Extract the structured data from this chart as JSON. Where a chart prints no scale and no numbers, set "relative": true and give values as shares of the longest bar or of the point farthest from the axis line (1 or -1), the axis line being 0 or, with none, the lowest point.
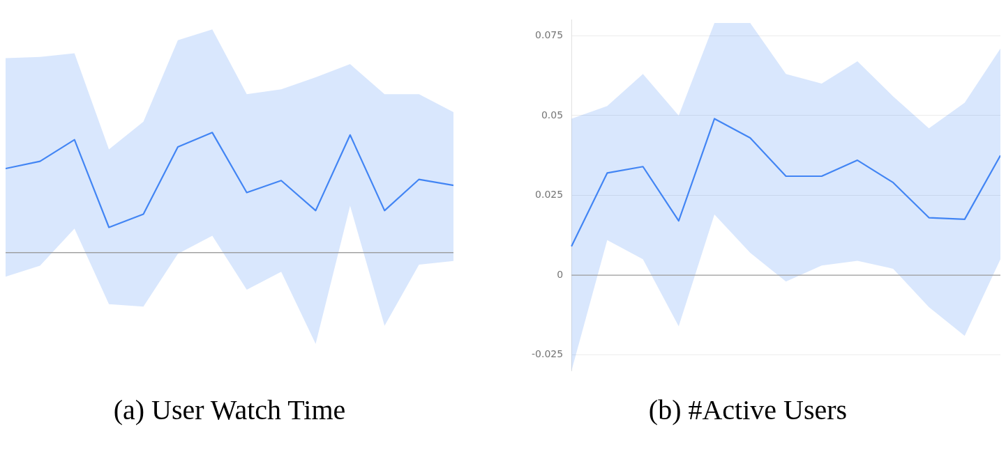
{
  "chart_data": [
    {
      "type": "line",
      "xlabel": "(a)  User Watch Time",
      "relative": true,
      "legend": false,
      "tick_labels": false,
      "marker": "none",
      "line_style": "solid",
      "categories": [
        null,
        null,
        null,
        null,
        null,
        null,
        null,
        null,
        null,
        null,
        null,
        null,
        null,
        null
      ],
      "series": [
        {
          "color": "#4285f4",
          "values": [
            0.7,
            0.76,
            0.94,
            0.21,
            0.32,
            0.88,
            1,
            0.5,
            0.6,
            0.35,
            0.98,
            0.35,
            0.61,
            0.56
          ],
          "upper": [
            1.62,
            1.63,
            1.66,
            0.86,
            1.09,
            1.77,
            1.86,
            1.32,
            1.36,
            1.46,
            1.57,
            1.32,
            1.32,
            1.17
          ],
          "lower": [
            -0.2,
            -0.11,
            0.2,
            -0.43,
            -0.45,
            -0.01,
            0.14,
            -0.31,
            -0.16,
            -0.76,
            0.39,
            -0.61,
            -0.1,
            -0.07
          ]
        }
      ]
    },
    {
      "type": "line",
      "xlabel": "(b)  #Active Users",
      "grid": "y",
      "legend": false,
      "tick_labels": "y",
      "marker": "none",
      "line_style": "solid",
      "categories": [
        null,
        null,
        null,
        null,
        null,
        null,
        null,
        null,
        null,
        null,
        null,
        null,
        null
      ],
      "ylim": [
        -0.03,
        0.08
      ],
      "yticks": [
        -0.025,
        0,
        0.025,
        0.05,
        0.075
      ],
      "series": [
        {
          "color": "#4285f4",
          "values": [
            0.009,
            0.032,
            0.034,
            0.017,
            0.049,
            0.043,
            0.031,
            0.031,
            0.036,
            0.029,
            0.018,
            0.0175,
            0.0375
          ],
          "upper": [
            0.049,
            0.053,
            0.063,
            0.05,
            0.079,
            0.079,
            0.063,
            0.06,
            0.067,
            0.056,
            0.046,
            0.054,
            0.071
          ],
          "lower": [
            -0.03,
            0.011,
            0.005,
            -0.016,
            0.019,
            0.007,
            -0.002,
            0.003,
            0.0045,
            0.002,
            -0.01,
            -0.019,
            0.005
          ]
        }
      ]
    }
  ]
}
